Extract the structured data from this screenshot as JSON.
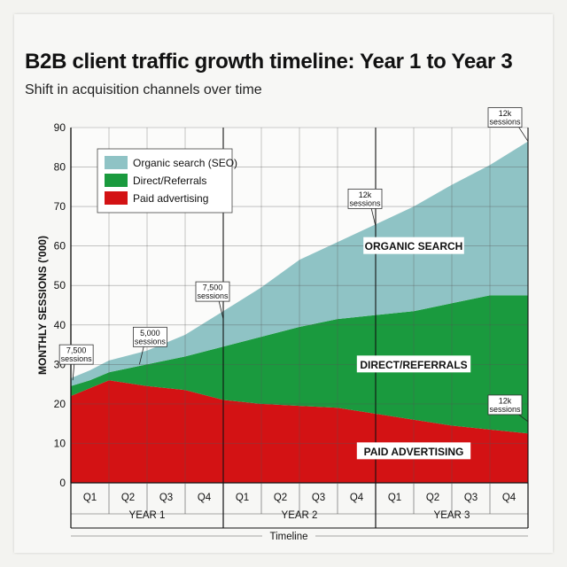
{
  "chart_data": {
    "type": "area",
    "stacked": true,
    "title": "B2B client traffic growth timeline: Year 1 to Year 3",
    "subtitle": "Shift in acquisition channels over time",
    "ylabel": "MONTHLY SESSIONS ('000)",
    "xlabel": "Timeline",
    "ylim": [
      0,
      90
    ],
    "yticks": [
      0,
      10,
      20,
      30,
      40,
      50,
      60,
      70,
      80,
      90
    ],
    "categories": [
      "Q1",
      "Q2",
      "Q3",
      "Q4",
      "Q1",
      "Q2",
      "Q3",
      "Q4",
      "Q1",
      "Q2",
      "Q3",
      "Q4"
    ],
    "years": [
      "YEAR 1",
      "YEAR 2",
      "YEAR 3"
    ],
    "x": [
      0,
      0.5,
      1,
      2,
      3,
      4,
      5,
      6,
      7,
      8,
      9,
      10,
      11,
      12
    ],
    "series": [
      {
        "name": "Paid advertising",
        "color": "#d31214",
        "values": [
          22,
          24,
          26,
          24.5,
          23.5,
          21,
          20,
          19.5,
          19,
          17.5,
          16,
          14.5,
          13.5,
          12.5
        ]
      },
      {
        "name": "Direct/Referrals",
        "color": "#1a9a3e",
        "values": [
          2.5,
          2,
          2,
          5.5,
          8.5,
          13.5,
          17,
          20,
          22.5,
          25,
          27.5,
          31,
          34,
          35
        ]
      },
      {
        "name": "Organic search (SEO)",
        "color": "#8fc3c5",
        "values": [
          2,
          2.5,
          3,
          3.5,
          5.5,
          9,
          12.5,
          17,
          19.5,
          23,
          26.5,
          30,
          33,
          39
        ]
      }
    ],
    "legend": {
      "position": "top-left",
      "items": [
        "Organic search (SEO)",
        "Direct/Referrals",
        "Paid advertising"
      ]
    },
    "region_labels": [
      "ORGANIC SEARCH",
      "DIRECT/REFERRALS",
      "PAID ADVERTISING"
    ],
    "annotations": [
      {
        "lines": [
          "7,500",
          "sessions"
        ],
        "x": 0.05,
        "y": 26
      },
      {
        "lines": [
          "5,000",
          "sessions"
        ],
        "x": 1.8,
        "y": 30
      },
      {
        "lines": [
          "7,500",
          "sessions"
        ],
        "x": 4.0,
        "y": 41.5
      },
      {
        "lines": [
          "12k",
          "sessions"
        ],
        "x": 8.0,
        "y": 65
      },
      {
        "lines": [
          "12k",
          "sessions"
        ],
        "x": 12.0,
        "y": 86.5
      },
      {
        "lines": [
          "12k",
          "sessions"
        ],
        "x": 12.0,
        "y": 15.5
      }
    ]
  }
}
